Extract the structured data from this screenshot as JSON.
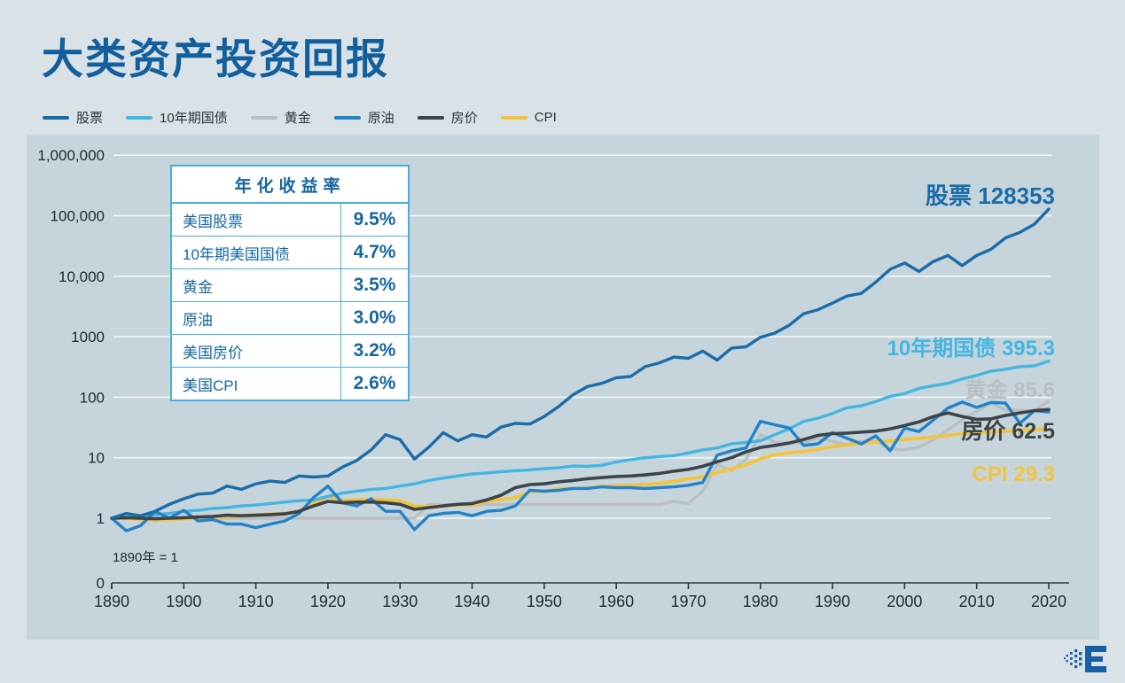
{
  "page": {
    "title": "大类资产投资回报"
  },
  "table": {
    "header": "年化收益率",
    "rows": [
      [
        "美国股票",
        "9.5%"
      ],
      [
        "10年期美国国债",
        "4.7%"
      ],
      [
        "黄金",
        "3.5%"
      ],
      [
        "原油",
        "3.0%"
      ],
      [
        "美国房价",
        "3.2%"
      ],
      [
        "美国CPI",
        "2.6%"
      ]
    ]
  },
  "chart_data": {
    "type": "line",
    "title": "大类资产投资回报",
    "note": "1890年 = 1",
    "y_scale": "log",
    "ylim": [
      1,
      1000000
    ],
    "x_ticks": [
      "1890",
      "1900",
      "1910",
      "1920",
      "1930",
      "1940",
      "1950",
      "1960",
      "1970",
      "1980",
      "1990",
      "2000",
      "2010",
      "2020"
    ],
    "y_ticks": [
      {
        "label": "1,000,000",
        "value": 1000000
      },
      {
        "label": "100,000",
        "value": 100000
      },
      {
        "label": "10,000",
        "value": 10000
      },
      {
        "label": "1000",
        "value": 1000
      },
      {
        "label": "100",
        "value": 100
      },
      {
        "label": "10",
        "value": 10
      },
      {
        "label": "1",
        "value": 1
      },
      {
        "label": "0",
        "value": null
      }
    ],
    "years": [
      1890,
      1892,
      1894,
      1896,
      1898,
      1900,
      1902,
      1904,
      1906,
      1908,
      1910,
      1912,
      1914,
      1916,
      1918,
      1920,
      1922,
      1924,
      1926,
      1928,
      1930,
      1932,
      1934,
      1936,
      1938,
      1940,
      1942,
      1944,
      1946,
      1948,
      1950,
      1952,
      1954,
      1956,
      1958,
      1960,
      1962,
      1964,
      1966,
      1968,
      1970,
      1972,
      1974,
      1976,
      1978,
      1980,
      1982,
      1984,
      1986,
      1988,
      1990,
      1992,
      1994,
      1996,
      1998,
      2000,
      2002,
      2004,
      2006,
      2008,
      2010,
      2012,
      2014,
      2016,
      2018,
      2020
    ],
    "series": [
      {
        "key": "stocks",
        "name": "股票",
        "color": "#1b6ca8",
        "width": 3.4,
        "end_label": "股票 128353",
        "end_value": 128353,
        "values": [
          1,
          1.2,
          1.1,
          1.3,
          1.7,
          2.1,
          2.5,
          2.6,
          3.4,
          3,
          3.7,
          4.1,
          3.9,
          5,
          4.8,
          5,
          7,
          9,
          13.5,
          24,
          20,
          9.5,
          15,
          26,
          19,
          24,
          22,
          32,
          37,
          36,
          48,
          70,
          110,
          150,
          170,
          210,
          220,
          320,
          370,
          460,
          440,
          580,
          410,
          650,
          680,
          980,
          1150,
          1550,
          2400,
          2800,
          3600,
          4700,
          5200,
          8000,
          13000,
          16500,
          12000,
          17500,
          22000,
          15000,
          22000,
          28000,
          43000,
          53000,
          72000,
          128353
        ]
      },
      {
        "key": "treasury10y",
        "name": "10年期国债",
        "color": "#45b5e2",
        "width": 3.4,
        "end_label": "10年期国债 395.3",
        "end_value": 395.3,
        "values": [
          1,
          1.05,
          1.1,
          1.15,
          1.2,
          1.3,
          1.35,
          1.45,
          1.5,
          1.6,
          1.65,
          1.75,
          1.85,
          1.95,
          2,
          2.3,
          2.6,
          2.8,
          3,
          3.1,
          3.4,
          3.7,
          4.2,
          4.6,
          5,
          5.4,
          5.6,
          5.9,
          6.1,
          6.3,
          6.6,
          6.8,
          7.3,
          7.2,
          7.5,
          8.5,
          9.3,
          10,
          10.5,
          10.8,
          12,
          13.5,
          14.5,
          17,
          18,
          19,
          24,
          30,
          40,
          45,
          54,
          67,
          72,
          85,
          103,
          115,
          140,
          155,
          170,
          200,
          230,
          270,
          290,
          320,
          330,
          395.3
        ]
      },
      {
        "key": "gold",
        "name": "黄金",
        "color": "#b9bfc2",
        "width": 3.4,
        "end_label": "黄金 85.6",
        "end_value": 85.6,
        "values": [
          1,
          1,
          1,
          1,
          1,
          1,
          1,
          1,
          1,
          1,
          1,
          1,
          1,
          1,
          1,
          1,
          1,
          1,
          1,
          1,
          1,
          1,
          1.69,
          1.69,
          1.69,
          1.69,
          1.69,
          1.69,
          1.69,
          1.69,
          1.69,
          1.69,
          1.69,
          1.69,
          1.69,
          1.7,
          1.7,
          1.7,
          1.7,
          1.9,
          1.75,
          2.8,
          7.7,
          6.1,
          9.4,
          24,
          18,
          17.5,
          17.8,
          21,
          18.6,
          16.6,
          18.6,
          18.8,
          14.2,
          13.5,
          15,
          19.8,
          29,
          42,
          59,
          81,
          61,
          60,
          61,
          85.6
        ]
      },
      {
        "key": "crude-oil",
        "name": "原油",
        "color": "#2382c8",
        "width": 3.4,
        "end_label": null,
        "end_value": 57,
        "values": [
          1,
          0.62,
          0.75,
          1.3,
          1,
          1.35,
          0.9,
          0.95,
          0.8,
          0.8,
          0.7,
          0.8,
          0.9,
          1.2,
          2.2,
          3.4,
          1.8,
          1.6,
          2.1,
          1.3,
          1.3,
          0.65,
          1.1,
          1.2,
          1.25,
          1.1,
          1.3,
          1.35,
          1.6,
          2.9,
          2.8,
          2.9,
          3.1,
          3.1,
          3.3,
          3.2,
          3.2,
          3.1,
          3.2,
          3.3,
          3.5,
          3.9,
          11,
          13,
          14.5,
          40,
          35,
          31,
          16,
          17,
          26,
          21,
          17,
          23,
          13,
          31,
          27,
          42,
          66,
          83,
          68,
          82,
          80,
          37,
          60,
          57
        ]
      },
      {
        "key": "house-price",
        "name": "房价",
        "color": "#3d4449",
        "width": 3.6,
        "end_label": "房价 62.5",
        "end_value": 62.5,
        "values": [
          1,
          1.02,
          1,
          0.98,
          1,
          1.02,
          1.05,
          1.07,
          1.12,
          1.1,
          1.12,
          1.15,
          1.18,
          1.3,
          1.6,
          1.9,
          1.8,
          1.85,
          1.85,
          1.8,
          1.7,
          1.4,
          1.5,
          1.6,
          1.7,
          1.75,
          2,
          2.4,
          3.2,
          3.6,
          3.7,
          4,
          4.2,
          4.5,
          4.7,
          4.9,
          5,
          5.2,
          5.5,
          6,
          6.4,
          7.2,
          8.6,
          10,
          12.5,
          14.8,
          16,
          17.5,
          20,
          23.5,
          25,
          25.5,
          26.5,
          27.5,
          30,
          34,
          39,
          48,
          55,
          48,
          43,
          44,
          50,
          55,
          60,
          62.5
        ]
      },
      {
        "key": "cpi",
        "name": "CPI",
        "color": "#f2c33d",
        "width": 3.8,
        "end_label": "CPI 29.3",
        "end_value": 29.3,
        "values": [
          1,
          1,
          0.95,
          0.93,
          0.95,
          0.97,
          1,
          1.03,
          1.06,
          1.1,
          1.13,
          1.18,
          1.2,
          1.3,
          1.75,
          2.3,
          1.95,
          2,
          2.05,
          2,
          1.95,
          1.6,
          1.55,
          1.6,
          1.65,
          1.65,
          1.9,
          2.05,
          2.2,
          2.75,
          2.8,
          3.05,
          3.1,
          3.15,
          3.35,
          3.45,
          3.5,
          3.6,
          3.8,
          4.05,
          4.5,
          4.85,
          5.7,
          6.6,
          7.6,
          9.6,
          11.2,
          12.1,
          12.7,
          13.8,
          15.2,
          16.3,
          17.2,
          18.2,
          18.9,
          20,
          20.9,
          21.9,
          23.4,
          25,
          25.3,
          26.7,
          27.5,
          28,
          29.2,
          29.3
        ]
      }
    ],
    "legend_position": "top-left",
    "grid": "horizontal-only"
  }
}
